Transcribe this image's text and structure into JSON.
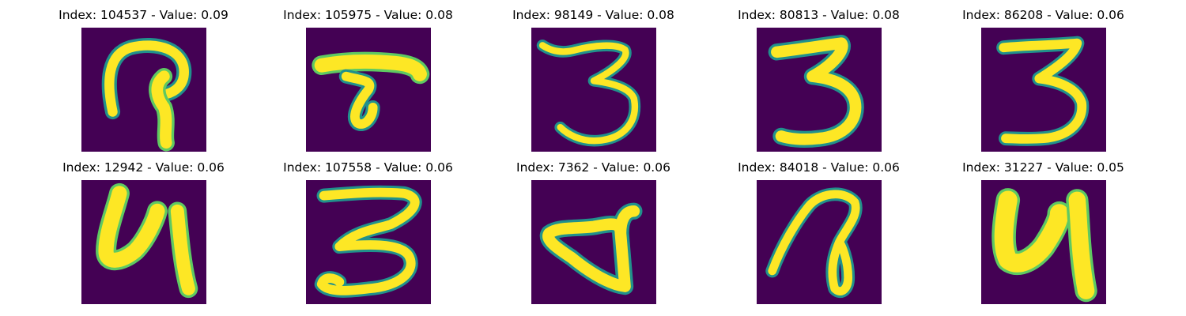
{
  "figure": {
    "background": "#ffffff",
    "colormap": "viridis",
    "background_color": "#440154",
    "stroke_color": "#fde725",
    "edge_colors": [
      "#21918c",
      "#5ec962",
      "#3b528b"
    ],
    "panels": [
      {
        "title": "Index: 104537 - Value: 0.09",
        "glyph": "handwritten 9 / question-mark shape"
      },
      {
        "title": "Index: 105975 - Value: 0.08",
        "glyph": "handwritten T shape"
      },
      {
        "title": "Index: 98149 - Value: 0.08",
        "glyph": "handwritten 3"
      },
      {
        "title": "Index: 80813 - Value: 0.08",
        "glyph": "handwritten 3"
      },
      {
        "title": "Index: 86208 - Value: 0.06",
        "glyph": "handwritten 3"
      },
      {
        "title": "Index: 12942 - Value: 0.06",
        "glyph": "handwritten 4 / Cyrillic che"
      },
      {
        "title": "Index: 107558 - Value: 0.06",
        "glyph": "handwritten 3"
      },
      {
        "title": "Index: 7362 - Value: 0.06",
        "glyph": "handwritten d / triangle shape"
      },
      {
        "title": "Index: 84018 - Value: 0.06",
        "glyph": "handwritten loop / 7 shape"
      },
      {
        "title": "Index: 31227 - Value: 0.05",
        "glyph": "handwritten 4 / Cyrillic che"
      }
    ]
  }
}
